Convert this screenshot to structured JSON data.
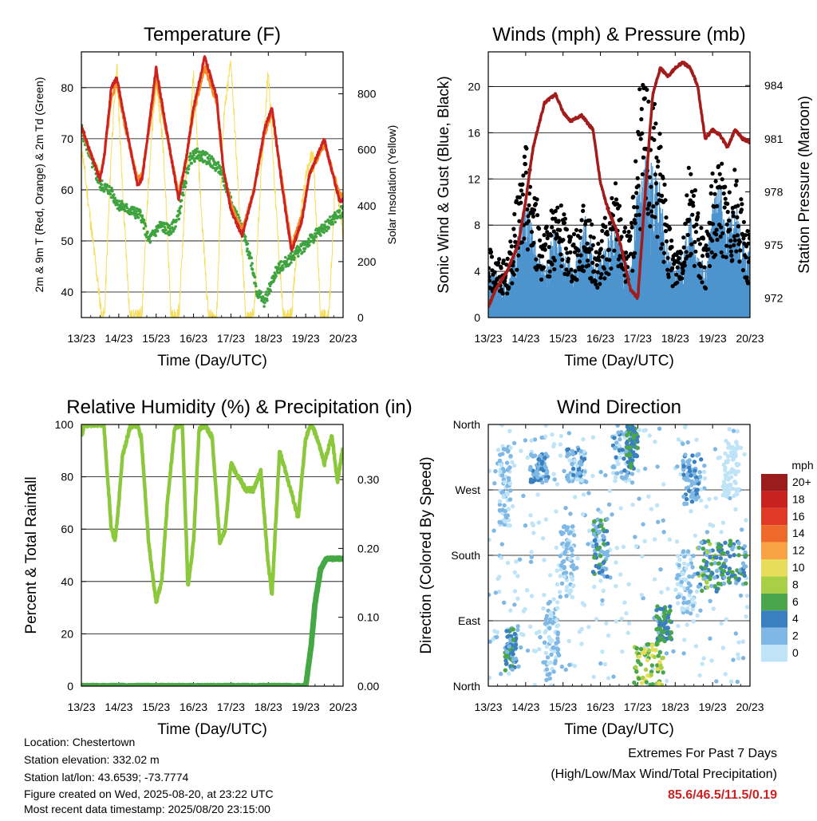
{
  "colors": {
    "temp_2m": "#cc2222",
    "temp_9m": "#f28c28",
    "dewpoint": "#3fa33f",
    "insolation": "#f5dd5a",
    "wind": "#4d94cf",
    "gust": "#000000",
    "pressure": "#a31c1c",
    "rh": "#8cc83c",
    "rain": "#44a844",
    "extremes": "#cc2222"
  },
  "chart_data": [
    {
      "type": "line",
      "title": "Temperature (F)",
      "xlabel": "Time (Day/UTC)",
      "ylabel": "2m & 9m T (Red, Orange) & 2m Td (Green)",
      "y2label": "Solar Insolation (Yellow)",
      "x_ticks": [
        "13/23",
        "14/23",
        "15/23",
        "16/23",
        "17/23",
        "18/23",
        "19/23",
        "20/23"
      ],
      "xlim": [
        0,
        7
      ],
      "ylim": [
        35,
        87
      ],
      "y_ticks": [
        40,
        50,
        60,
        70,
        80
      ],
      "y2lim": [
        0,
        950
      ],
      "y2_ticks": [
        0,
        200,
        400,
        600,
        800
      ],
      "grid": true,
      "series": [
        {
          "name": "2m T",
          "key": "temp_2m",
          "axis": "y",
          "x": [
            0,
            0.3,
            0.5,
            0.62,
            0.8,
            0.95,
            1.15,
            1.5,
            1.62,
            1.8,
            2.0,
            2.2,
            2.6,
            2.8,
            3.0,
            3.3,
            3.62,
            3.8,
            4.0,
            4.3,
            4.62,
            4.9,
            5.1,
            5.4,
            5.62,
            5.9,
            6.1,
            6.5,
            6.62,
            6.9,
            7.0
          ],
          "values": [
            72.5,
            66,
            62,
            67,
            80,
            82,
            74,
            61,
            62,
            72,
            84,
            75,
            58,
            66,
            76,
            86,
            78,
            64,
            56,
            51,
            60,
            72,
            76,
            59,
            48,
            54,
            63,
            70,
            66,
            58,
            58
          ]
        },
        {
          "name": "9m T",
          "key": "temp_9m",
          "axis": "y",
          "x": [
            0,
            0.3,
            0.5,
            0.62,
            0.8,
            0.95,
            1.15,
            1.5,
            1.62,
            1.8,
            2.0,
            2.2,
            2.6,
            2.8,
            3.0,
            3.3,
            3.62,
            3.8,
            4.0,
            4.3,
            4.62,
            4.9,
            5.1,
            5.4,
            5.62,
            5.9,
            6.1,
            6.5,
            6.62,
            6.9,
            7.0
          ],
          "values": [
            72,
            66,
            63,
            67,
            78,
            81,
            73,
            62,
            63,
            71,
            82,
            74,
            59,
            66,
            75,
            84,
            77,
            64,
            57,
            52,
            60,
            71,
            75,
            60,
            49,
            55,
            63,
            69,
            66,
            59,
            59
          ]
        },
        {
          "name": "2m Td",
          "key": "dewpoint",
          "axis": "y",
          "x": [
            0,
            0.3,
            0.5,
            0.75,
            1.0,
            1.3,
            1.6,
            1.8,
            2.1,
            2.4,
            2.6,
            2.9,
            3.1,
            3.4,
            3.7,
            4.0,
            4.3,
            4.55,
            4.7,
            4.9,
            5.2,
            5.5,
            5.8,
            6.1,
            6.4,
            6.7,
            7.0
          ],
          "values": [
            72,
            65,
            61,
            60,
            57,
            56,
            55,
            50,
            53,
            52,
            55,
            66,
            67,
            66,
            64,
            58,
            52,
            46,
            40,
            38,
            44,
            46,
            48,
            50,
            52,
            54,
            56
          ]
        },
        {
          "name": "Solar Insolation",
          "key": "insolation",
          "axis": "y2",
          "x": [
            0,
            0.55,
            0.62,
            0.8,
            0.95,
            1.1,
            1.3,
            1.55,
            1.62,
            1.8,
            2.0,
            2.2,
            2.4,
            2.55,
            2.62,
            2.8,
            3.0,
            3.2,
            3.4,
            3.55,
            3.62,
            3.8,
            4.0,
            4.2,
            4.4,
            4.55,
            4.62,
            4.8,
            5.0,
            5.2,
            5.4,
            5.55,
            5.62,
            5.8,
            6.0,
            6.2,
            6.4,
            6.55,
            6.62,
            6.8,
            7.0
          ],
          "values": [
            620,
            0,
            10,
            600,
            900,
            450,
            0,
            0,
            20,
            500,
            850,
            600,
            0,
            0,
            30,
            500,
            860,
            400,
            0,
            0,
            10,
            700,
            920,
            450,
            0,
            0,
            20,
            500,
            890,
            400,
            0,
            0,
            10,
            300,
            500,
            600,
            0,
            0,
            10,
            500,
            300
          ]
        }
      ]
    },
    {
      "type": "scatter",
      "title": "Winds (mph) & Pressure (mb)",
      "xlabel": "Time (Day/UTC)",
      "ylabel": "Sonic Wind & Gust (Blue, Black)",
      "y2label": "Station Pressure (Maroon)",
      "x_ticks": [
        "13/23",
        "14/23",
        "15/23",
        "16/23",
        "17/23",
        "18/23",
        "19/23",
        "20/23"
      ],
      "xlim": [
        0,
        7
      ],
      "ylim": [
        0,
        23
      ],
      "y_ticks": [
        0,
        4,
        8,
        12,
        16,
        20
      ],
      "y2lim": [
        970.9,
        985.9
      ],
      "y2_ticks": [
        972,
        975,
        978,
        981,
        984
      ],
      "grid": true,
      "series": [
        {
          "name": "Sonic Wind",
          "key": "wind",
          "axis": "y",
          "x": [
            0,
            0.5,
            1.0,
            1.2,
            1.5,
            1.75,
            2.0,
            2.3,
            2.6,
            2.9,
            3.1,
            3.4,
            3.6,
            3.8,
            4.0,
            4.2,
            4.4,
            4.6,
            4.8,
            5.0,
            5.2,
            5.4,
            5.6,
            5.8,
            6.0,
            6.2,
            6.4,
            6.6,
            6.8,
            7.0
          ],
          "values": [
            3,
            2,
            7,
            5,
            3,
            5,
            4,
            3,
            6,
            3,
            4,
            6,
            4,
            3,
            8,
            10,
            9,
            8,
            4,
            3,
            4,
            6,
            4,
            3,
            7,
            8,
            6,
            7,
            5,
            4
          ]
        },
        {
          "name": "Gust",
          "key": "gust",
          "axis": "y",
          "x": [
            0,
            0.5,
            1.0,
            1.2,
            1.5,
            1.75,
            2.0,
            2.3,
            2.6,
            2.9,
            3.1,
            3.4,
            3.6,
            3.8,
            4.0,
            4.2,
            4.4,
            4.6,
            4.8,
            5.0,
            5.2,
            5.4,
            5.6,
            5.8,
            6.0,
            6.2,
            6.4,
            6.6,
            6.8,
            7.0
          ],
          "values": [
            5,
            4,
            13,
            10,
            6,
            9,
            8,
            6,
            9,
            5,
            7,
            10,
            7,
            6,
            16,
            18,
            16,
            14,
            7,
            5,
            7,
            12,
            8,
            5,
            11,
            12,
            9,
            11,
            8,
            6
          ]
        },
        {
          "name": "Station Pressure",
          "key": "pressure",
          "axis": "y2",
          "x": [
            0,
            0.2,
            0.5,
            0.8,
            1.0,
            1.2,
            1.5,
            1.8,
            2.0,
            2.2,
            2.5,
            2.8,
            3.0,
            3.2,
            3.4,
            3.6,
            3.8,
            4.0,
            4.2,
            4.4,
            4.6,
            4.8,
            5.0,
            5.2,
            5.4,
            5.6,
            5.8,
            6.0,
            6.2,
            6.4,
            6.6,
            6.8,
            7.0
          ],
          "values": [
            971.5,
            972.5,
            973.5,
            975,
            977.5,
            980.5,
            983,
            983.5,
            982.5,
            982,
            982.3,
            981.5,
            978.5,
            977,
            976,
            974.5,
            972.5,
            972,
            978,
            983.5,
            985,
            984.5,
            985,
            985.3,
            985,
            984,
            981,
            981.5,
            981.2,
            980.5,
            981.5,
            981,
            980.8
          ]
        }
      ]
    },
    {
      "type": "line",
      "title": "Relative Humidity (%) & Precipitation (in)",
      "xlabel": "Time (Day/UTC)",
      "ylabel": "Percent & Total Rainfall",
      "x_ticks": [
        "13/23",
        "14/23",
        "15/23",
        "16/23",
        "17/23",
        "18/23",
        "19/23",
        "20/23"
      ],
      "xlim": [
        0,
        7
      ],
      "ylim": [
        0,
        100
      ],
      "y_ticks": [
        0,
        20,
        40,
        60,
        80,
        100
      ],
      "y2lim": [
        0,
        0.38
      ],
      "y2_ticks": [
        "0.00",
        "0.10",
        "0.20",
        "0.30"
      ],
      "grid": true,
      "series": [
        {
          "name": "Relative Humidity",
          "key": "rh",
          "axis": "y",
          "x": [
            0,
            0.1,
            0.6,
            0.8,
            0.9,
            1.0,
            1.1,
            1.3,
            1.5,
            1.6,
            1.8,
            2.0,
            2.15,
            2.3,
            2.5,
            2.7,
            2.85,
            3.0,
            3.15,
            3.3,
            3.5,
            3.7,
            3.85,
            4.0,
            4.2,
            4.4,
            4.6,
            4.8,
            5.0,
            5.1,
            5.3,
            5.6,
            5.8,
            6.0,
            6.15,
            6.3,
            6.5,
            6.7,
            6.85,
            7.0
          ],
          "values": [
            96,
            100,
            100,
            60,
            55,
            70,
            88,
            99,
            100,
            95,
            55,
            32,
            40,
            70,
            99,
            100,
            38,
            55,
            98,
            100,
            95,
            55,
            60,
            85,
            80,
            75,
            75,
            82,
            46,
            35,
            90,
            75,
            64,
            95,
            100,
            95,
            85,
            96,
            78,
            92
          ]
        },
        {
          "name": "Total Rainfall",
          "key": "rain",
          "axis": "y2",
          "x": [
            0,
            6.0,
            6.05,
            6.15,
            6.25,
            6.4,
            6.55,
            7.0
          ],
          "values": [
            0,
            0,
            0.02,
            0.06,
            0.12,
            0.17,
            0.185,
            0.185
          ]
        }
      ]
    },
    {
      "type": "scatter",
      "title": "Wind Direction",
      "xlabel": "Time (Day/UTC)",
      "ylabel": "Direction (Colored By Speed)",
      "x_ticks": [
        "13/23",
        "14/23",
        "15/23",
        "16/23",
        "17/23",
        "18/23",
        "19/23",
        "20/23"
      ],
      "xlim": [
        0,
        7
      ],
      "ylim": [
        0,
        360
      ],
      "y_tick_labels": [
        "North",
        "East",
        "South",
        "West",
        "North"
      ],
      "y_ticks": [
        0,
        90,
        180,
        270,
        360
      ],
      "grid": true,
      "colorbar": {
        "title": "mph",
        "labels": [
          "20+",
          "18",
          "16",
          "14",
          "12",
          "10",
          "8",
          "6",
          "4",
          "2",
          "0"
        ],
        "colors": [
          "#9b1c1c",
          "#c8221f",
          "#df3a26",
          "#ee6a2a",
          "#f7a245",
          "#e8dd5a",
          "#a9cf46",
          "#4aa64a",
          "#3a80c0",
          "#7fb8e4",
          "#bfe4f7"
        ]
      },
      "groups": [
        {
          "x": [
            0.3,
            0.6
          ],
          "dir": [
            220,
            330
          ],
          "speed": [
            1,
            4
          ]
        },
        {
          "x": [
            0.45,
            0.75
          ],
          "dir": [
            20,
            80
          ],
          "speed": [
            3,
            7
          ]
        },
        {
          "x": [
            1.1,
            1.6
          ],
          "dir": [
            280,
            320
          ],
          "speed": [
            2,
            5
          ]
        },
        {
          "x": [
            1.5,
            1.9
          ],
          "dir": [
            10,
            120
          ],
          "speed": [
            1,
            4
          ]
        },
        {
          "x": [
            1.9,
            2.3
          ],
          "dir": [
            120,
            220
          ],
          "speed": [
            1,
            4
          ]
        },
        {
          "x": [
            2.1,
            2.6
          ],
          "dir": [
            280,
            330
          ],
          "speed": [
            1,
            5
          ]
        },
        {
          "x": [
            2.8,
            3.2
          ],
          "dir": [
            150,
            230
          ],
          "speed": [
            2,
            7
          ]
        },
        {
          "x": [
            3.3,
            3.9
          ],
          "dir": [
            280,
            350
          ],
          "speed": [
            1,
            5
          ]
        },
        {
          "x": [
            3.7,
            4.0
          ],
          "dir": [
            300,
            360
          ],
          "speed": [
            4,
            8
          ]
        },
        {
          "x": [
            3.9,
            4.7
          ],
          "dir": [
            0,
            60
          ],
          "speed": [
            6,
            12
          ]
        },
        {
          "x": [
            4.5,
            4.9
          ],
          "dir": [
            60,
            110
          ],
          "speed": [
            4,
            8
          ]
        },
        {
          "x": [
            5.2,
            5.7
          ],
          "dir": [
            250,
            320
          ],
          "speed": [
            2,
            5
          ]
        },
        {
          "x": [
            5.0,
            5.5
          ],
          "dir": [
            100,
            190
          ],
          "speed": [
            1,
            3
          ]
        },
        {
          "x": [
            5.6,
            6.2
          ],
          "dir": [
            130,
            200
          ],
          "speed": [
            3,
            9
          ]
        },
        {
          "x": [
            6.2,
            6.9
          ],
          "dir": [
            140,
            200
          ],
          "speed": [
            3,
            8
          ]
        },
        {
          "x": [
            6.3,
            6.7
          ],
          "dir": [
            260,
            340
          ],
          "speed": [
            0,
            2
          ]
        }
      ]
    }
  ],
  "info": {
    "location": "Location: Chestertown",
    "elevation": "Station elevation: 332.02 m",
    "latlon": "Station lat/lon: 43.6539; -73.7774",
    "created": "Figure created on Wed, 2025-08-20, at 23:22 UTC",
    "recent": "Most recent data timestamp: 2025/08/20 23:15:00"
  },
  "extremes": {
    "title": "Extremes For Past 7 Days",
    "subtitle": "(High/Low/Max Wind/Total Precipitation)",
    "values": "85.6/46.5/11.5/0.19"
  }
}
